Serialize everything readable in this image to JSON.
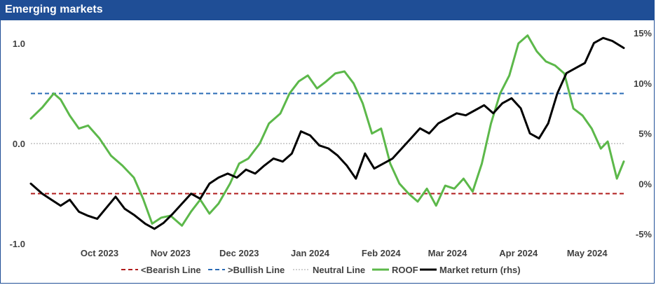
{
  "header": {
    "title": "Emerging markets"
  },
  "colors": {
    "frame": "#1f4e96",
    "roof": "#5cb84a",
    "market": "#000000",
    "bearish": "#b01c1c",
    "bullish": "#2a6bb5",
    "neutral": "#b4b4b4"
  },
  "chart_data": {
    "type": "line",
    "title": "Emerging markets",
    "y_left": {
      "range": [
        -1.0,
        1.0
      ],
      "ticks": [
        1.0,
        0.0,
        -1.0
      ],
      "tick_labels": [
        "1.0",
        "0.0",
        "-1.0"
      ]
    },
    "y_right": {
      "range": [
        -5,
        15
      ],
      "ticks": [
        15,
        10,
        5,
        0,
        -5
      ],
      "tick_labels": [
        "15%",
        "10%",
        "5%",
        "0%",
        "-5%"
      ]
    },
    "x": {
      "range": [
        "2023-09-15",
        "2024-05-31"
      ],
      "ticks": [
        "2023-10-15",
        "2023-11-15",
        "2023-12-15",
        "2024-01-15",
        "2024-02-15",
        "2024-03-15",
        "2024-04-15",
        "2024-05-15"
      ],
      "tick_labels": [
        "Oct 2023",
        "Nov 2023",
        "Dec 2023",
        "Jan 2024",
        "Feb 2024",
        "Mar 2024",
        "Apr 2024",
        "May 2024"
      ]
    },
    "reference_lines": [
      {
        "name": "<Bearish Line",
        "axis": "left",
        "value": -0.5,
        "style": "dashed"
      },
      {
        "name": ">Bullish Line",
        "axis": "left",
        "value": 0.5,
        "style": "dashed"
      },
      {
        "name": "Neutral Line",
        "axis": "left",
        "value": 0.0,
        "style": "dotted"
      }
    ],
    "legend_position": "bottom",
    "series": [
      {
        "name": "ROOF",
        "axis": "left",
        "points": [
          [
            "2023-09-15",
            0.25
          ],
          [
            "2023-09-20",
            0.36
          ],
          [
            "2023-09-25",
            0.5
          ],
          [
            "2023-09-28",
            0.44
          ],
          [
            "2023-10-02",
            0.28
          ],
          [
            "2023-10-06",
            0.15
          ],
          [
            "2023-10-10",
            0.18
          ],
          [
            "2023-10-15",
            0.05
          ],
          [
            "2023-10-20",
            -0.12
          ],
          [
            "2023-10-25",
            -0.22
          ],
          [
            "2023-10-30",
            -0.34
          ],
          [
            "2023-11-03",
            -0.55
          ],
          [
            "2023-11-07",
            -0.8
          ],
          [
            "2023-11-11",
            -0.74
          ],
          [
            "2023-11-15",
            -0.72
          ],
          [
            "2023-11-20",
            -0.82
          ],
          [
            "2023-11-24",
            -0.68
          ],
          [
            "2023-11-28",
            -0.56
          ],
          [
            "2023-12-02",
            -0.7
          ],
          [
            "2023-12-06",
            -0.6
          ],
          [
            "2023-12-11",
            -0.4
          ],
          [
            "2023-12-15",
            -0.2
          ],
          [
            "2023-12-19",
            -0.15
          ],
          [
            "2023-12-24",
            0.0
          ],
          [
            "2023-12-28",
            0.2
          ],
          [
            "2024-01-02",
            0.3
          ],
          [
            "2024-01-06",
            0.5
          ],
          [
            "2024-01-10",
            0.62
          ],
          [
            "2024-01-14",
            0.68
          ],
          [
            "2024-01-18",
            0.55
          ],
          [
            "2024-01-22",
            0.62
          ],
          [
            "2024-01-26",
            0.7
          ],
          [
            "2024-01-30",
            0.72
          ],
          [
            "2024-02-03",
            0.6
          ],
          [
            "2024-02-07",
            0.4
          ],
          [
            "2024-02-11",
            0.1
          ],
          [
            "2024-02-15",
            0.15
          ],
          [
            "2024-02-19",
            -0.2
          ],
          [
            "2024-02-23",
            -0.4
          ],
          [
            "2024-02-27",
            -0.5
          ],
          [
            "2024-03-02",
            -0.58
          ],
          [
            "2024-03-06",
            -0.45
          ],
          [
            "2024-03-10",
            -0.62
          ],
          [
            "2024-03-14",
            -0.42
          ],
          [
            "2024-03-18",
            -0.45
          ],
          [
            "2024-03-22",
            -0.35
          ],
          [
            "2024-03-26",
            -0.48
          ],
          [
            "2024-03-30",
            -0.2
          ],
          [
            "2024-04-03",
            0.2
          ],
          [
            "2024-04-07",
            0.5
          ],
          [
            "2024-04-11",
            0.68
          ],
          [
            "2024-04-15",
            1.0
          ],
          [
            "2024-04-19",
            1.08
          ],
          [
            "2024-04-23",
            0.92
          ],
          [
            "2024-04-27",
            0.82
          ],
          [
            "2024-05-01",
            0.78
          ],
          [
            "2024-05-05",
            0.7
          ],
          [
            "2024-05-09",
            0.35
          ],
          [
            "2024-05-13",
            0.28
          ],
          [
            "2024-05-17",
            0.15
          ],
          [
            "2024-05-21",
            -0.05
          ],
          [
            "2024-05-24",
            0.02
          ],
          [
            "2024-05-28",
            -0.35
          ],
          [
            "2024-05-31",
            -0.18
          ]
        ]
      },
      {
        "name": "Market return (rhs)",
        "axis": "right",
        "points": [
          [
            "2023-09-15",
            0.0
          ],
          [
            "2023-09-20",
            -1.0
          ],
          [
            "2023-09-24",
            -1.6
          ],
          [
            "2023-09-28",
            -2.2
          ],
          [
            "2023-10-02",
            -1.6
          ],
          [
            "2023-10-06",
            -2.8
          ],
          [
            "2023-10-10",
            -3.2
          ],
          [
            "2023-10-14",
            -3.5
          ],
          [
            "2023-10-18",
            -2.4
          ],
          [
            "2023-10-22",
            -1.3
          ],
          [
            "2023-10-26",
            -2.5
          ],
          [
            "2023-10-30",
            -3.1
          ],
          [
            "2023-11-04",
            -4.0
          ],
          [
            "2023-11-08",
            -4.5
          ],
          [
            "2023-11-12",
            -3.9
          ],
          [
            "2023-11-16",
            -3.0
          ],
          [
            "2023-11-20",
            -2.0
          ],
          [
            "2023-11-24",
            -1.0
          ],
          [
            "2023-11-28",
            -1.5
          ],
          [
            "2023-12-02",
            0.0
          ],
          [
            "2023-12-06",
            0.6
          ],
          [
            "2023-12-10",
            1.0
          ],
          [
            "2023-12-14",
            0.6
          ],
          [
            "2023-12-18",
            1.4
          ],
          [
            "2023-12-22",
            1.0
          ],
          [
            "2023-12-26",
            1.8
          ],
          [
            "2023-12-30",
            2.5
          ],
          [
            "2024-01-03",
            2.2
          ],
          [
            "2024-01-07",
            3.0
          ],
          [
            "2024-01-11",
            5.2
          ],
          [
            "2024-01-15",
            4.8
          ],
          [
            "2024-01-19",
            3.8
          ],
          [
            "2024-01-23",
            3.5
          ],
          [
            "2024-01-27",
            2.8
          ],
          [
            "2024-01-31",
            1.8
          ],
          [
            "2024-02-04",
            0.5
          ],
          [
            "2024-02-08",
            3.0
          ],
          [
            "2024-02-12",
            1.5
          ],
          [
            "2024-02-16",
            2.0
          ],
          [
            "2024-02-20",
            2.5
          ],
          [
            "2024-02-24",
            3.5
          ],
          [
            "2024-02-28",
            4.5
          ],
          [
            "2024-03-03",
            5.5
          ],
          [
            "2024-03-07",
            5.0
          ],
          [
            "2024-03-11",
            6.0
          ],
          [
            "2024-03-15",
            6.5
          ],
          [
            "2024-03-19",
            7.0
          ],
          [
            "2024-03-23",
            6.8
          ],
          [
            "2024-03-27",
            7.3
          ],
          [
            "2024-03-31",
            7.8
          ],
          [
            "2024-04-04",
            7.0
          ],
          [
            "2024-04-08",
            8.0
          ],
          [
            "2024-04-12",
            8.5
          ],
          [
            "2024-04-16",
            7.5
          ],
          [
            "2024-04-20",
            5.0
          ],
          [
            "2024-04-24",
            4.5
          ],
          [
            "2024-04-28",
            6.0
          ],
          [
            "2024-05-02",
            9.0
          ],
          [
            "2024-05-06",
            11.0
          ],
          [
            "2024-05-10",
            11.5
          ],
          [
            "2024-05-14",
            12.0
          ],
          [
            "2024-05-18",
            14.0
          ],
          [
            "2024-05-22",
            14.5
          ],
          [
            "2024-05-26",
            14.2
          ],
          [
            "2024-05-31",
            13.5
          ]
        ]
      }
    ]
  }
}
